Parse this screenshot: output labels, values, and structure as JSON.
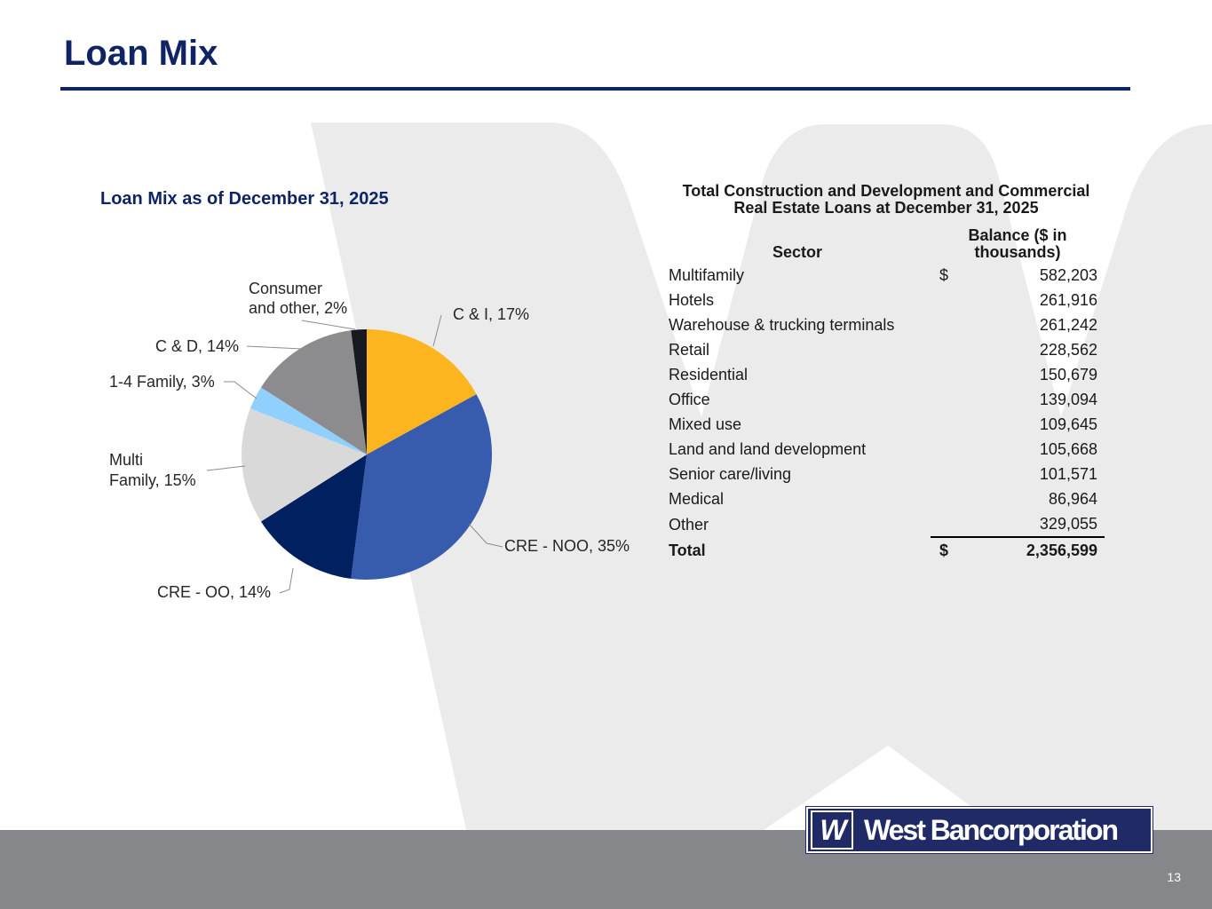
{
  "page": {
    "title": "Loan Mix",
    "page_number": "13",
    "logo_text": "West Bancorporation",
    "logo_mark": "W"
  },
  "colors": {
    "navy": "#0f2563",
    "footer_gray": "#86878b",
    "watermark": "#ebebeb"
  },
  "chart_data": {
    "type": "pie",
    "title": "Loan Mix as of December 31, 2025",
    "slices": [
      {
        "label": "C & I, 17%",
        "value": 17,
        "color": "#fdb51f"
      },
      {
        "label": "CRE - NOO, 35%",
        "value": 35,
        "color": "#385cad"
      },
      {
        "label": "CRE - OO, 14%",
        "value": 14,
        "color": "#002060"
      },
      {
        "label": "Multi Family, 15%",
        "value": 15,
        "color": "#d9d9d9"
      },
      {
        "label": "1-4 Family, 3%",
        "value": 3,
        "color": "#8fd0ff"
      },
      {
        "label": "C & D, 14%",
        "value": 14,
        "color": "#8c8c8f"
      },
      {
        "label": "Consumer and other, 2%",
        "value": 2,
        "color": "#16191f"
      }
    ]
  },
  "table": {
    "title": "Total Construction and Development and Commercial Real Estate Loans at December 31, 2025",
    "headers": {
      "sector": "Sector",
      "balance": "Balance ($ in thousands)"
    },
    "rows": [
      {
        "sector": "Multifamily",
        "currency": "$",
        "balance": "582,203"
      },
      {
        "sector": "Hotels",
        "currency": "",
        "balance": "261,916"
      },
      {
        "sector": "Warehouse & trucking terminals",
        "currency": "",
        "balance": "261,242"
      },
      {
        "sector": "Retail",
        "currency": "",
        "balance": "228,562"
      },
      {
        "sector": "Residential",
        "currency": "",
        "balance": "150,679"
      },
      {
        "sector": "Office",
        "currency": "",
        "balance": "139,094"
      },
      {
        "sector": "Mixed use",
        "currency": "",
        "balance": "109,645"
      },
      {
        "sector": "Land and land development",
        "currency": "",
        "balance": "105,668"
      },
      {
        "sector": "Senior care/living",
        "currency": "",
        "balance": "101,571"
      },
      {
        "sector": "Medical",
        "currency": "",
        "balance": "86,964"
      },
      {
        "sector": "Other",
        "currency": "",
        "balance": "329,055"
      }
    ],
    "total": {
      "sector": "Total",
      "currency": "$",
      "balance": "2,356,599"
    }
  }
}
